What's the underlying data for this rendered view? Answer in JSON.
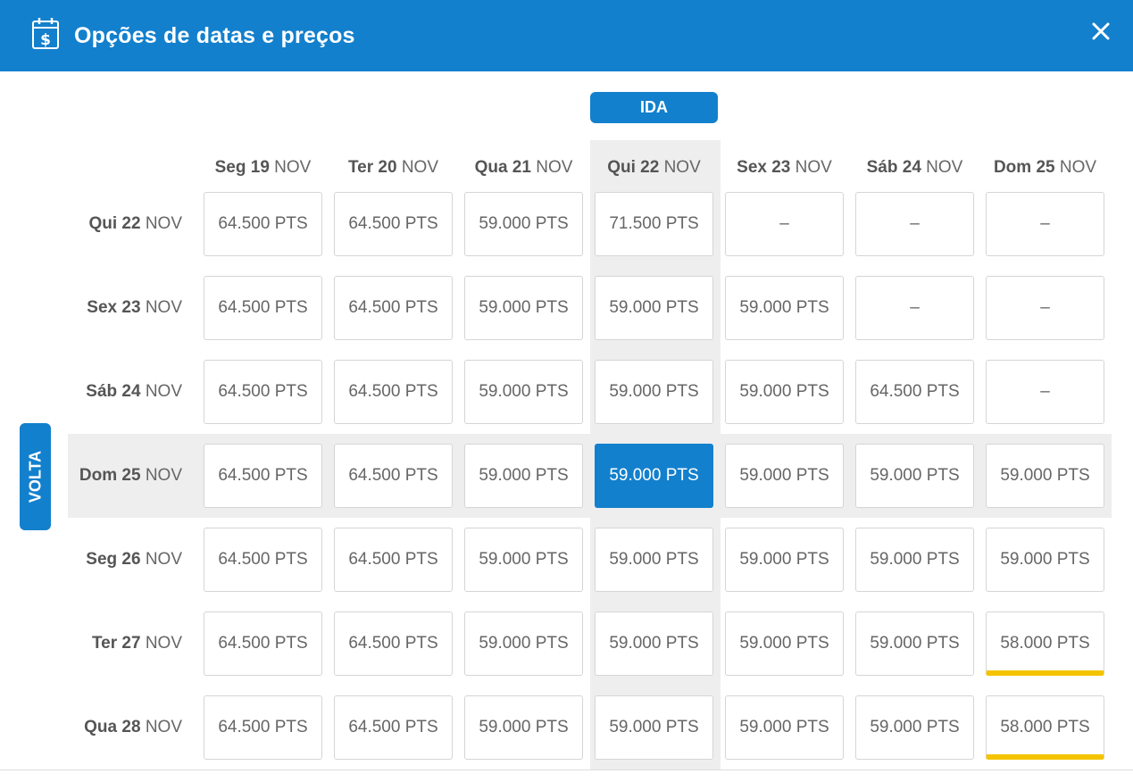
{
  "dialog": {
    "title": "Opções de datas e preços",
    "ida_label": "IDA",
    "volta_label": "VOLTA"
  },
  "columns": [
    {
      "day": "Seg 19",
      "month": "NOV"
    },
    {
      "day": "Ter 20",
      "month": "NOV"
    },
    {
      "day": "Qua 21",
      "month": "NOV"
    },
    {
      "day": "Qui 22",
      "month": "NOV"
    },
    {
      "day": "Sex 23",
      "month": "NOV"
    },
    {
      "day": "Sáb 24",
      "month": "NOV"
    },
    {
      "day": "Dom 25",
      "month": "NOV"
    }
  ],
  "rows": [
    {
      "day": "Qui 22",
      "month": "NOV",
      "prices": [
        "64.500 PTS",
        "64.500 PTS",
        "59.000 PTS",
        "71.500 PTS",
        "–",
        "–",
        "–"
      ]
    },
    {
      "day": "Sex 23",
      "month": "NOV",
      "prices": [
        "64.500 PTS",
        "64.500 PTS",
        "59.000 PTS",
        "59.000 PTS",
        "59.000 PTS",
        "–",
        "–"
      ]
    },
    {
      "day": "Sáb 24",
      "month": "NOV",
      "prices": [
        "64.500 PTS",
        "64.500 PTS",
        "59.000 PTS",
        "59.000 PTS",
        "59.000 PTS",
        "64.500 PTS",
        "–"
      ]
    },
    {
      "day": "Dom 25",
      "month": "NOV",
      "prices": [
        "64.500 PTS",
        "64.500 PTS",
        "59.000 PTS",
        "59.000 PTS",
        "59.000 PTS",
        "59.000 PTS",
        "59.000 PTS"
      ]
    },
    {
      "day": "Seg 26",
      "month": "NOV",
      "prices": [
        "64.500 PTS",
        "64.500 PTS",
        "59.000 PTS",
        "59.000 PTS",
        "59.000 PTS",
        "59.000 PTS",
        "59.000 PTS"
      ]
    },
    {
      "day": "Ter 27",
      "month": "NOV",
      "prices": [
        "64.500 PTS",
        "64.500 PTS",
        "59.000 PTS",
        "59.000 PTS",
        "59.000 PTS",
        "59.000 PTS",
        "58.000 PTS"
      ]
    },
    {
      "day": "Qua 28",
      "month": "NOV",
      "prices": [
        "64.500 PTS",
        "64.500 PTS",
        "59.000 PTS",
        "59.000 PTS",
        "59.000 PTS",
        "59.000 PTS",
        "58.000 PTS"
      ]
    }
  ],
  "selected": {
    "row": 3,
    "col": 3
  },
  "best_price_cells": [
    [
      5,
      6
    ],
    [
      6,
      6
    ]
  ],
  "colors": {
    "primary": "#1380cd",
    "highlight": "#eeeeee",
    "best_price_marker": "#f5c400"
  },
  "icons": {
    "header": "calendar-dollar-icon",
    "close": "close-icon"
  }
}
